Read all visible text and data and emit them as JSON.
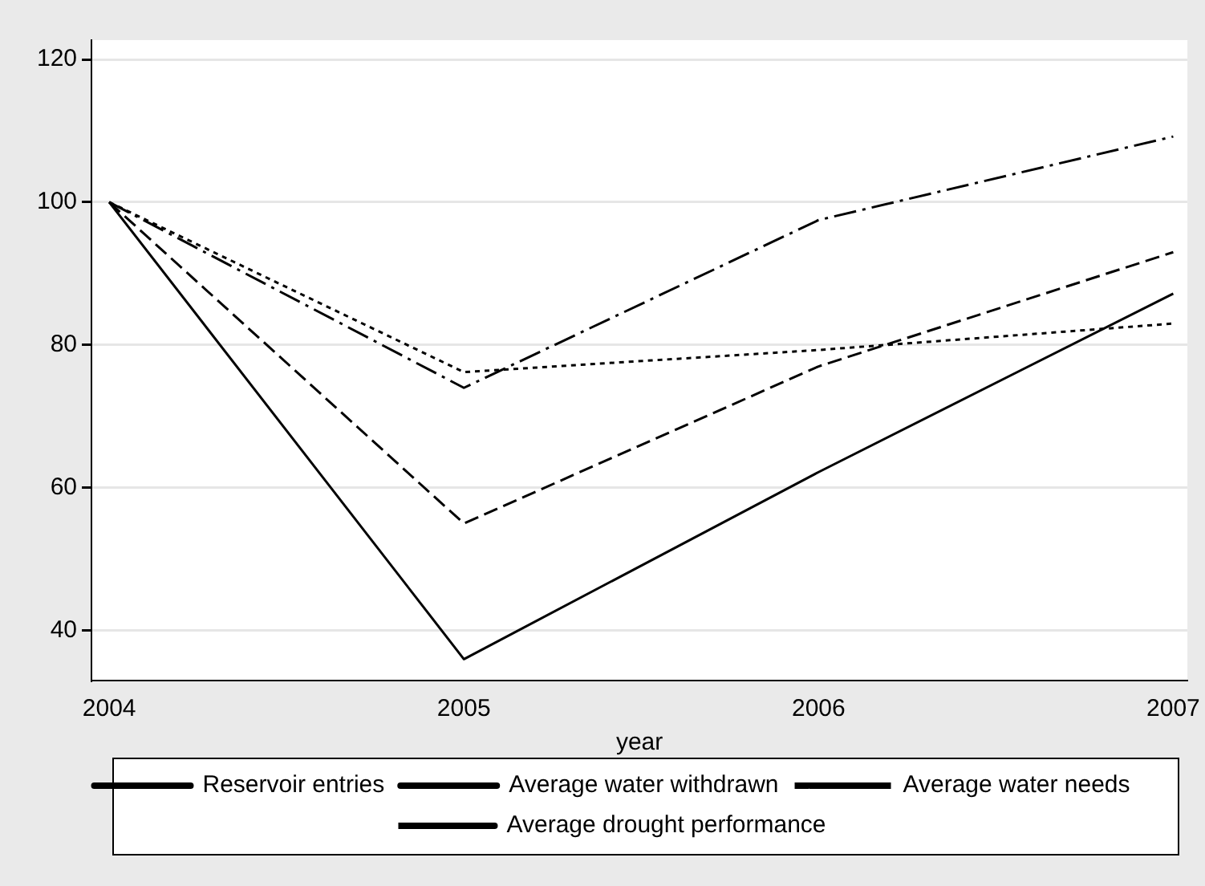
{
  "chart_data": {
    "type": "line",
    "xlabel": "year",
    "x": [
      2004,
      2005,
      2006,
      2007
    ],
    "xlim": [
      2003.95,
      2007.04
    ],
    "xticks": [
      2004,
      2005,
      2006,
      2007
    ],
    "ylim": [
      33,
      122.7
    ],
    "yticks": [
      40,
      60,
      80,
      100,
      120
    ],
    "grid": "y",
    "legend": "bottom",
    "marker": "none",
    "series": [
      {
        "name": "Reservoir entries",
        "color": "#000000",
        "line_style": "solid",
        "values": [
          100,
          36,
          62.2,
          87.2
        ]
      },
      {
        "name": "Average water withdrawn",
        "color": "#000000",
        "line_style": "dashed",
        "values": [
          100,
          55,
          77,
          93
        ]
      },
      {
        "name": "Average water needs",
        "color": "#000000",
        "line_style": "dotted",
        "values": [
          100,
          76.2,
          79.3,
          83
        ]
      },
      {
        "name": "Average drought performance",
        "color": "#000000",
        "line_style": "dashdot",
        "values": [
          100,
          74,
          97.5,
          109.2
        ]
      }
    ]
  }
}
